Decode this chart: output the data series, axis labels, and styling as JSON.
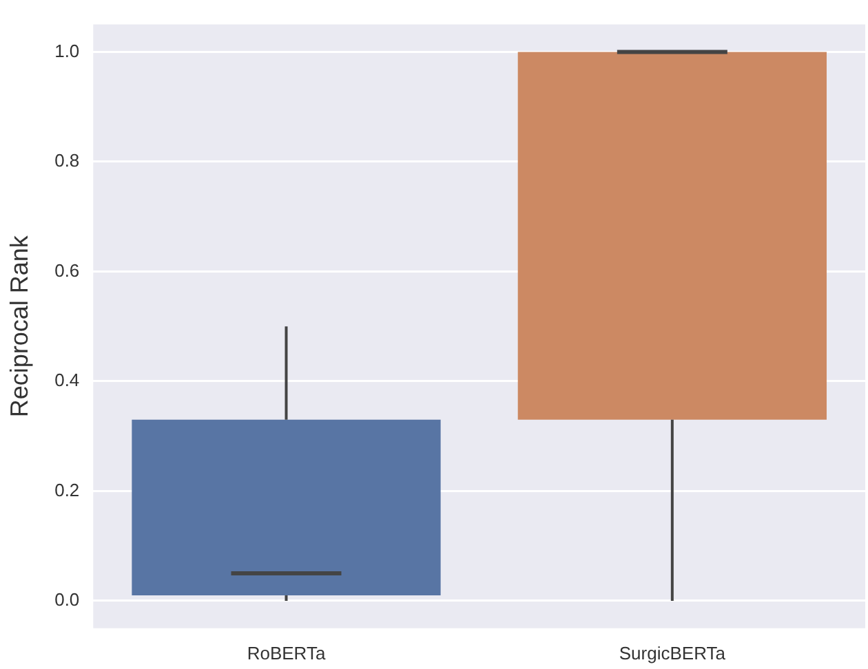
{
  "chart_data": {
    "type": "box",
    "ylabel": "Reciprocal Rank",
    "categories": [
      "RoBERTa",
      "SurgicBERTa"
    ],
    "boxes": [
      {
        "low": 0,
        "q1": 0.01,
        "median": 0.05,
        "q3": 0.33,
        "high": 0.5
      },
      {
        "low": 0,
        "q1": 0.33,
        "median": 1.0,
        "q3": 1.0,
        "high": 1.0
      }
    ],
    "colors": [
      "#5875a4",
      "#cc8963"
    ],
    "ylim": [
      -0.05,
      1.05
    ],
    "yticks": [
      {
        "value": 0,
        "label": "0.0"
      },
      {
        "value": 0.2,
        "label": "0.2"
      },
      {
        "value": 0.4,
        "label": "0.4"
      },
      {
        "value": 0.6,
        "label": "0.6"
      },
      {
        "value": 0.8,
        "label": "0.8"
      },
      {
        "value": 1,
        "label": "1.0"
      }
    ],
    "grid": "y",
    "legend": false
  }
}
